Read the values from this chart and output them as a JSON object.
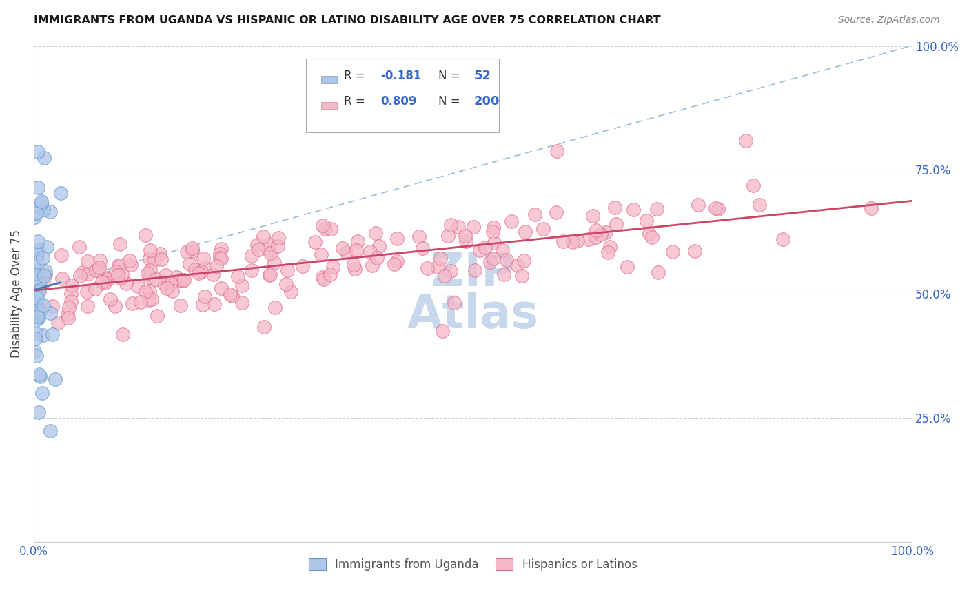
{
  "title": "IMMIGRANTS FROM UGANDA VS HISPANIC OR LATINO DISABILITY AGE OVER 75 CORRELATION CHART",
  "source": "Source: ZipAtlas.com",
  "ylabel": "Disability Age Over 75",
  "legend_label1": "Immigrants from Uganda",
  "legend_label2": "Hispanics or Latinos",
  "R1": -0.181,
  "N1": 52,
  "R2": 0.809,
  "N2": 200,
  "color1_face": "#aec6e8",
  "color1_edge": "#6699cc",
  "color2_face": "#f4b8c8",
  "color2_edge": "#e07090",
  "line1_color": "#4477bb",
  "line2_color": "#cc4466",
  "dash_color": "#99bbdd",
  "watermark_color": "#c8d8ec",
  "xlim": [
    0.0,
    1.0
  ],
  "ylim": [
    0.0,
    1.0
  ],
  "yticks": [
    0.0,
    0.25,
    0.5,
    0.75,
    1.0
  ],
  "ytick_labels_right": [
    "",
    "25.0%",
    "50.0%",
    "75.0%",
    "100.0%"
  ],
  "xtick_labels": [
    "0.0%",
    "",
    "",
    "",
    "100.0%"
  ],
  "seed1": 7,
  "seed2": 99
}
